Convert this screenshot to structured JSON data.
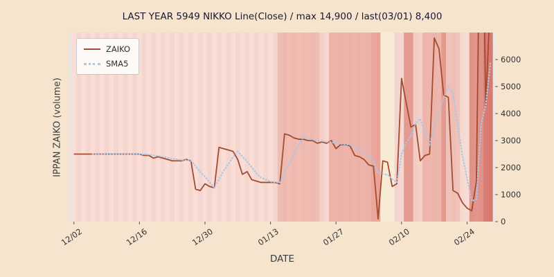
{
  "chart_data": {
    "type": "line",
    "title": "LAST YEAR 5949 NIKKO Line(Close) / max 14,900 / last(03/01) 8,400",
    "xlabel": "DATE",
    "ylabel": "IPPAN ZAIKO (volume)",
    "ylim": [
      0,
      7000
    ],
    "yticks": [
      0,
      1000,
      2000,
      3000,
      4000,
      5000,
      6000
    ],
    "xticks": [
      {
        "day": 0,
        "label": "12/02"
      },
      {
        "day": 14,
        "label": "12/16"
      },
      {
        "day": 28,
        "label": "12/30"
      },
      {
        "day": 42,
        "label": "01/13"
      },
      {
        "day": 56,
        "label": "01/27"
      },
      {
        "day": 70,
        "label": "02/10"
      },
      {
        "day": 84,
        "label": "02/24"
      }
    ],
    "start_date": "12/02",
    "end_date": "03/01",
    "max_value": 14900,
    "last_value": 8400,
    "series": [
      {
        "name": "ZAIKO",
        "color": "#a24b2e",
        "style": "solid"
      },
      {
        "name": "SMA5",
        "color": "#a9c7e8",
        "style": "dotted",
        "derived": "sma5-of-zaiko"
      }
    ],
    "values": [
      2500,
      2500,
      2500,
      2500,
      2500,
      2500,
      2500,
      2500,
      2500,
      2500,
      2500,
      2500,
      2500,
      2500,
      2500,
      2450,
      2450,
      2350,
      2400,
      2350,
      2300,
      2250,
      2250,
      2250,
      2300,
      2250,
      1200,
      1150,
      1400,
      1300,
      1250,
      2750,
      2700,
      2650,
      2600,
      2300,
      1750,
      1850,
      1550,
      1500,
      1450,
      1450,
      1450,
      1450,
      1400,
      3250,
      3200,
      3100,
      3050,
      3050,
      3000,
      3000,
      2900,
      2950,
      2900,
      3000,
      2700,
      2850,
      2850,
      2800,
      2450,
      2400,
      2300,
      2100,
      2050,
      100,
      2250,
      2200,
      1300,
      1400,
      5300,
      4400,
      3500,
      3600,
      2250,
      2450,
      2500,
      6800,
      6400,
      4700,
      4600,
      1150,
      1050,
      700,
      500,
      400,
      1500,
      14900,
      4300,
      8400
    ],
    "plot_background": "#eae7e3",
    "stripe_colors": [
      "#f9ddd6",
      "#f5d6ce"
    ],
    "background_bands": [
      {
        "s": 44,
        "e": 53,
        "c": "rgba(230,150,138,0.45)"
      },
      {
        "s": 53,
        "e": 55,
        "c": "rgba(240,200,192,0.35)"
      },
      {
        "s": 55,
        "e": 64,
        "c": "rgba(228,140,128,0.50)"
      },
      {
        "s": 64,
        "e": 66,
        "c": "rgba(222,122,110,0.55)"
      },
      {
        "s": 66,
        "e": 69,
        "c": "rgba(248,236,214,0.95)"
      },
      {
        "s": 69,
        "e": 71,
        "c": "rgba(244,212,204,0.50)"
      },
      {
        "s": 71,
        "e": 73,
        "c": "rgba(218,114,102,0.60)"
      },
      {
        "s": 73,
        "e": 75,
        "c": "rgba(240,190,182,0.40)"
      },
      {
        "s": 75,
        "e": 79,
        "c": "rgba(228,146,134,0.50)"
      },
      {
        "s": 79,
        "e": 80,
        "c": "rgba(218,114,102,0.60)"
      },
      {
        "s": 80,
        "e": 83,
        "c": "rgba(234,168,156,0.50)"
      },
      {
        "s": 83,
        "e": 85,
        "c": "rgba(246,220,208,0.60)"
      },
      {
        "s": 85,
        "e": 88,
        "c": "rgba(212,100,90,0.60)"
      },
      {
        "s": 88,
        "e": 90,
        "c": "rgba(202,84,76,0.70)"
      }
    ],
    "figure_background": "#f6e4cf",
    "legend_position": "upper-left"
  }
}
